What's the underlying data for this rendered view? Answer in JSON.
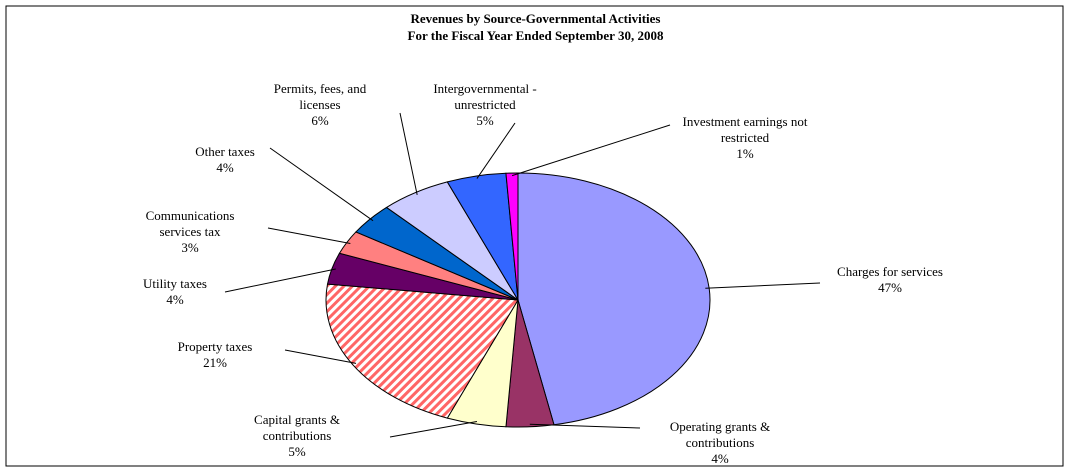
{
  "chart_data": {
    "type": "pie",
    "title": "Revenues by Source-Governmental Activities",
    "subtitle": "For the Fiscal Year Ended September 30, 2008",
    "categories": [
      "Charges for services",
      "Operating grants & contributions",
      "Capital grants & contributions",
      "Property taxes",
      "Utility taxes",
      "Communications services tax",
      "Other taxes",
      "Permits, fees, and licenses",
      "Intergovernmental - unrestricted",
      "Investment earnings not restricted"
    ],
    "values": [
      47,
      4,
      5,
      21,
      4,
      3,
      4,
      6,
      5,
      1
    ],
    "value_labels": [
      "47%",
      "4%",
      "5%",
      "21%",
      "4%",
      "3%",
      "4%",
      "6%",
      "5%",
      "1%"
    ],
    "colors": [
      "#9999ff",
      "#993366",
      "#ffffcc",
      "#ff8080",
      "#660066",
      "#ff8080",
      "#0066cc",
      "#ccccff",
      "#3366ff",
      "#ff00ff"
    ],
    "hatched": [
      false,
      false,
      false,
      true,
      false,
      false,
      false,
      false,
      false,
      false
    ]
  }
}
